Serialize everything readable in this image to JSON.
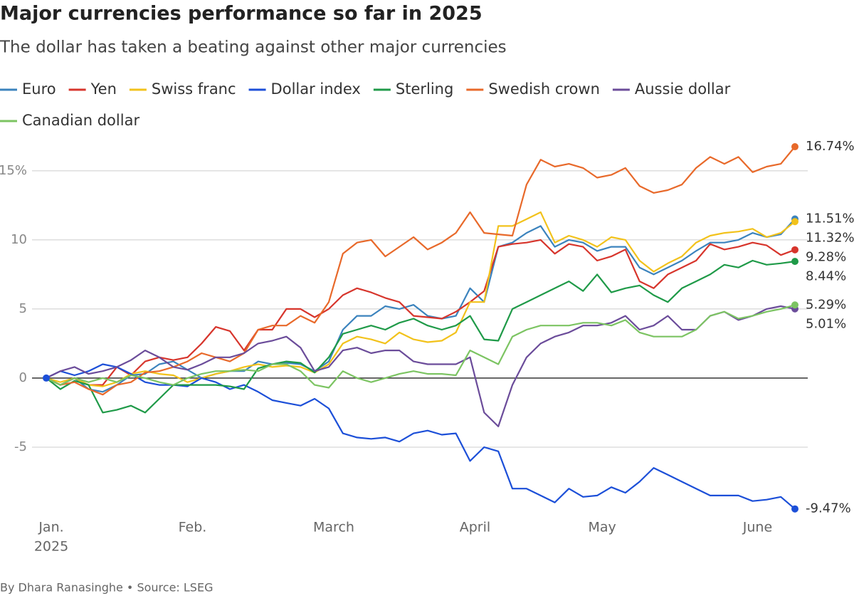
{
  "chart_data": {
    "type": "line",
    "title": "Major currencies performance so far in 2025",
    "subtitle": "The dollar has taken a beating against other major currencies",
    "footer": "By Dhara Ranasinghe • Source: LSEG",
    "x_sublabel": "2025",
    "categories": [
      "Jan.",
      null,
      null,
      null,
      null,
      null,
      null,
      null,
      null,
      null,
      "Feb.",
      null,
      null,
      null,
      null,
      null,
      null,
      null,
      null,
      null,
      "March",
      null,
      null,
      null,
      null,
      null,
      null,
      null,
      null,
      null,
      "April",
      null,
      null,
      null,
      null,
      null,
      null,
      null,
      null,
      "May",
      null,
      null,
      null,
      null,
      null,
      null,
      null,
      null,
      null,
      null,
      "June",
      null,
      null,
      null
    ],
    "ylim": [
      -10,
      17
    ],
    "yticks": [
      -5,
      0,
      5,
      10,
      {
        "value": 15,
        "label": "15%"
      }
    ],
    "grid": true,
    "legend": "top",
    "series": [
      {
        "name": "Euro",
        "color": "#3b83bd",
        "values": [
          0,
          -0.5,
          0,
          -0.8,
          -1.0,
          -0.5,
          0.2,
          0.3,
          1.0,
          1.2,
          0.6,
          0,
          0.3,
          0.5,
          0.5,
          1.2,
          1.0,
          1.1,
          1.0,
          0.5,
          1.2,
          3.5,
          4.5,
          4.5,
          5.2,
          5.0,
          5.3,
          4.5,
          4.3,
          4.5,
          6.5,
          5.5,
          9.5,
          9.8,
          10.5,
          11.0,
          9.5,
          10.0,
          9.8,
          9.2,
          9.5,
          9.5,
          8.0,
          7.5,
          8.0,
          8.5,
          9.2,
          9.8,
          9.8,
          10.0,
          10.5,
          10.2,
          10.4,
          11.51
        ],
        "value_labels": [
          null,
          null,
          null,
          null,
          null,
          null,
          null,
          null,
          null,
          null,
          null,
          null,
          null,
          null,
          null,
          null,
          null,
          null,
          null,
          null,
          null,
          null,
          null,
          null,
          null,
          null,
          null,
          null,
          null,
          null,
          null,
          null,
          null,
          null,
          null,
          null,
          null,
          null,
          null,
          null,
          null,
          null,
          null,
          null,
          null,
          null,
          null,
          null,
          null,
          null,
          null,
          null,
          null,
          "11.51%"
        ]
      },
      {
        "name": "Yen",
        "color": "#d7352c",
        "values": [
          0,
          -0.5,
          0,
          -0.5,
          -0.5,
          0.8,
          0.2,
          1.2,
          1.5,
          1.3,
          1.5,
          2.5,
          3.7,
          3.4,
          2.0,
          3.5,
          3.5,
          5.0,
          5.0,
          4.4,
          5.0,
          6.0,
          6.5,
          6.2,
          5.8,
          5.5,
          4.5,
          4.4,
          4.3,
          4.8,
          5.5,
          6.3,
          9.5,
          9.7,
          9.8,
          10.0,
          9.0,
          9.7,
          9.5,
          8.5,
          8.8,
          9.3,
          7.0,
          6.5,
          7.5,
          8.0,
          8.5,
          9.7,
          9.3,
          9.5,
          9.8,
          9.6,
          8.9,
          9.28
        ],
        "value_labels": [
          null,
          null,
          null,
          null,
          null,
          null,
          null,
          null,
          null,
          null,
          null,
          null,
          null,
          null,
          null,
          null,
          null,
          null,
          null,
          null,
          null,
          null,
          null,
          null,
          null,
          null,
          null,
          null,
          null,
          null,
          null,
          null,
          null,
          null,
          null,
          null,
          null,
          null,
          null,
          null,
          null,
          null,
          null,
          null,
          null,
          null,
          null,
          null,
          null,
          null,
          null,
          null,
          null,
          "9.28%"
        ]
      },
      {
        "name": "Swiss franc",
        "color": "#f2c21b",
        "values": [
          0,
          -0.3,
          0,
          -0.5,
          -0.6,
          -0.3,
          0.3,
          0.5,
          0.3,
          0.2,
          -0.3,
          0,
          0.3,
          0.5,
          0.8,
          1.0,
          0.8,
          0.9,
          0.8,
          0.4,
          1.0,
          2.5,
          3.0,
          2.8,
          2.5,
          3.3,
          2.8,
          2.6,
          2.7,
          3.3,
          5.5,
          5.5,
          11.0,
          11.0,
          11.5,
          12.0,
          9.8,
          10.3,
          10.0,
          9.5,
          10.2,
          10.0,
          8.5,
          7.7,
          8.3,
          8.8,
          9.8,
          10.3,
          10.5,
          10.6,
          10.8,
          10.2,
          10.5,
          11.32
        ],
        "value_labels": [
          null,
          null,
          null,
          null,
          null,
          null,
          null,
          null,
          null,
          null,
          null,
          null,
          null,
          null,
          null,
          null,
          null,
          null,
          null,
          null,
          null,
          null,
          null,
          null,
          null,
          null,
          null,
          null,
          null,
          null,
          null,
          null,
          null,
          null,
          null,
          null,
          null,
          null,
          null,
          null,
          null,
          null,
          null,
          null,
          null,
          null,
          null,
          null,
          null,
          null,
          null,
          null,
          null,
          "11.32%"
        ]
      },
      {
        "name": "Dollar index",
        "color": "#1c4fd8",
        "values": [
          0,
          0.5,
          0.2,
          0.5,
          1.0,
          0.8,
          0.3,
          -0.3,
          -0.5,
          -0.5,
          -0.6,
          0,
          -0.3,
          -0.8,
          -0.5,
          -1.0,
          -1.6,
          -1.8,
          -2.0,
          -1.5,
          -2.2,
          -4.0,
          -4.3,
          -4.4,
          -4.3,
          -4.6,
          -4.0,
          -3.8,
          -4.1,
          -4.0,
          -6.0,
          -5.0,
          -5.3,
          -8.0,
          -8.0,
          -8.5,
          -9.0,
          -8.0,
          -8.6,
          -8.5,
          -7.9,
          -8.3,
          -7.5,
          -6.5,
          -7.0,
          -7.5,
          -8.0,
          -8.5,
          -8.5,
          -8.5,
          -8.9,
          -8.8,
          -8.6,
          -9.47
        ],
        "value_labels": [
          null,
          null,
          null,
          null,
          null,
          null,
          null,
          null,
          null,
          null,
          null,
          null,
          null,
          null,
          null,
          null,
          null,
          null,
          null,
          null,
          null,
          null,
          null,
          null,
          null,
          null,
          null,
          null,
          null,
          null,
          null,
          null,
          null,
          null,
          null,
          null,
          null,
          null,
          null,
          null,
          null,
          null,
          null,
          null,
          null,
          null,
          null,
          null,
          null,
          null,
          null,
          null,
          null,
          "-9.47%"
        ]
      },
      {
        "name": "Sterling",
        "color": "#1f9a48",
        "values": [
          0,
          -0.8,
          -0.2,
          -0.5,
          -2.5,
          -2.3,
          -2.0,
          -2.5,
          -1.5,
          -0.5,
          -0.5,
          -0.5,
          -0.5,
          -0.6,
          -0.8,
          0.7,
          1.0,
          1.2,
          1.1,
          0.4,
          1.5,
          3.2,
          3.5,
          3.8,
          3.5,
          4.0,
          4.3,
          3.8,
          3.5,
          3.8,
          4.5,
          2.8,
          2.7,
          5.0,
          5.5,
          6.0,
          6.5,
          7.0,
          6.3,
          7.5,
          6.2,
          6.5,
          6.7,
          6.0,
          5.5,
          6.5,
          7.0,
          7.5,
          8.2,
          8.0,
          8.5,
          8.2,
          8.3,
          8.44
        ],
        "value_labels": [
          null,
          null,
          null,
          null,
          null,
          null,
          null,
          null,
          null,
          null,
          null,
          null,
          null,
          null,
          null,
          null,
          null,
          null,
          null,
          null,
          null,
          null,
          null,
          null,
          null,
          null,
          null,
          null,
          null,
          null,
          null,
          null,
          null,
          null,
          null,
          null,
          null,
          null,
          null,
          null,
          null,
          null,
          null,
          null,
          null,
          null,
          null,
          null,
          null,
          null,
          null,
          null,
          null,
          "8.44%"
        ]
      },
      {
        "name": "Swedish crown",
        "color": "#e8692a",
        "values": [
          0,
          -0.5,
          -0.3,
          -0.8,
          -1.2,
          -0.5,
          -0.3,
          0.4,
          0.5,
          0.8,
          1.2,
          1.8,
          1.5,
          1.2,
          1.8,
          3.5,
          3.8,
          3.8,
          4.5,
          4.0,
          5.5,
          9.0,
          9.8,
          10.0,
          8.8,
          9.5,
          10.2,
          9.3,
          9.8,
          10.5,
          12.0,
          10.5,
          10.4,
          10.3,
          14.0,
          15.8,
          15.3,
          15.5,
          15.2,
          14.5,
          14.7,
          15.2,
          13.9,
          13.4,
          13.6,
          14.0,
          15.2,
          16.0,
          15.5,
          16.0,
          14.9,
          15.3,
          15.5,
          16.74
        ],
        "value_labels": [
          null,
          null,
          null,
          null,
          null,
          null,
          null,
          null,
          null,
          null,
          null,
          null,
          null,
          null,
          null,
          null,
          null,
          null,
          null,
          null,
          null,
          null,
          null,
          null,
          null,
          null,
          null,
          null,
          null,
          null,
          null,
          null,
          null,
          null,
          null,
          null,
          null,
          null,
          null,
          null,
          null,
          null,
          null,
          null,
          null,
          null,
          null,
          null,
          null,
          null,
          null,
          null,
          null,
          "16.74%"
        ]
      },
      {
        "name": "Aussie dollar",
        "color": "#6b4c9a",
        "values": [
          0,
          0.5,
          0.8,
          0.3,
          0.5,
          0.8,
          1.3,
          2.0,
          1.5,
          0.8,
          0.6,
          1.0,
          1.5,
          1.5,
          1.8,
          2.5,
          2.7,
          3.0,
          2.2,
          0.5,
          0.8,
          2.0,
          2.2,
          1.8,
          2.0,
          2.0,
          1.2,
          1.0,
          1.0,
          1.0,
          1.5,
          -2.5,
          -3.5,
          -0.5,
          1.5,
          2.5,
          3.0,
          3.3,
          3.8,
          3.8,
          4.0,
          4.5,
          3.5,
          3.8,
          4.5,
          3.5,
          3.5,
          4.5,
          4.8,
          4.2,
          4.5,
          5.0,
          5.2,
          5.01
        ],
        "value_labels": [
          null,
          null,
          null,
          null,
          null,
          null,
          null,
          null,
          null,
          null,
          null,
          null,
          null,
          null,
          null,
          null,
          null,
          null,
          null,
          null,
          null,
          null,
          null,
          null,
          null,
          null,
          null,
          null,
          null,
          null,
          null,
          null,
          null,
          null,
          null,
          null,
          null,
          null,
          null,
          null,
          null,
          null,
          null,
          null,
          null,
          null,
          null,
          null,
          null,
          null,
          null,
          null,
          null,
          "5.01%"
        ]
      },
      {
        "name": "Canadian dollar",
        "color": "#7cc462",
        "values": [
          0,
          -0.5,
          0,
          -0.3,
          0,
          -0.3,
          0.2,
          0,
          -0.3,
          -0.5,
          0,
          0.3,
          0.5,
          0.5,
          0.6,
          0.5,
          1.0,
          1.0,
          0.5,
          -0.5,
          -0.7,
          0.5,
          0,
          -0.3,
          0,
          0.3,
          0.5,
          0.3,
          0.3,
          0.2,
          2.0,
          1.5,
          1.0,
          3.0,
          3.5,
          3.8,
          3.8,
          3.8,
          4.0,
          4.0,
          3.8,
          4.2,
          3.3,
          3.0,
          3.0,
          3.0,
          3.5,
          4.5,
          4.8,
          4.3,
          4.5,
          4.8,
          5.0,
          5.29
        ],
        "value_labels": [
          null,
          null,
          null,
          null,
          null,
          null,
          null,
          null,
          null,
          null,
          null,
          null,
          null,
          null,
          null,
          null,
          null,
          null,
          null,
          null,
          null,
          null,
          null,
          null,
          null,
          null,
          null,
          null,
          null,
          null,
          null,
          null,
          null,
          null,
          null,
          null,
          null,
          null,
          null,
          null,
          null,
          null,
          null,
          null,
          null,
          null,
          null,
          null,
          null,
          null,
          null,
          null,
          null,
          "5.29%"
        ]
      }
    ]
  }
}
